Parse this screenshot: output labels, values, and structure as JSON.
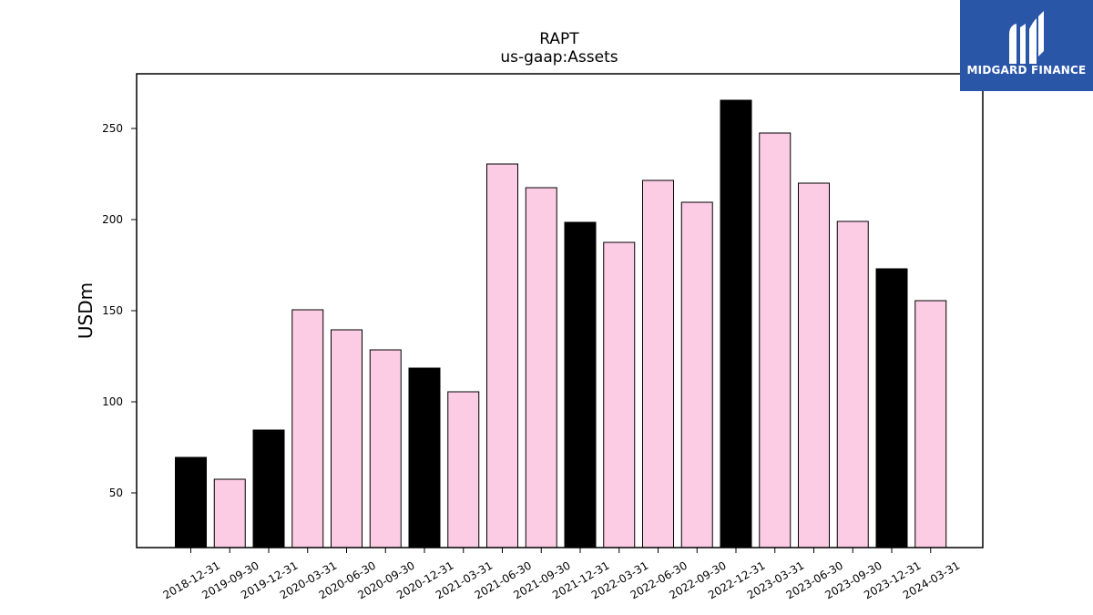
{
  "brand": {
    "name": "MIDGARD FINANCE",
    "color": "#2a56a8"
  },
  "chart_data": {
    "type": "bar",
    "title": "RAPT",
    "subtitle": "us-gaap:Assets",
    "xlabel": "",
    "ylabel": "USDm",
    "ylim": [
      20,
      280
    ],
    "yticks": [
      50,
      100,
      150,
      200,
      250
    ],
    "grid": false,
    "categories": [
      "2018-12-31",
      "2019-09-30",
      "2019-12-31",
      "2020-03-31",
      "2020-06-30",
      "2020-09-30",
      "2020-12-31",
      "2021-03-31",
      "2021-06-30",
      "2021-09-30",
      "2021-12-31",
      "2022-03-31",
      "2022-06-30",
      "2022-09-30",
      "2022-12-31",
      "2023-03-31",
      "2023-06-30",
      "2023-09-30",
      "2023-12-31",
      "2024-03-31"
    ],
    "values": [
      69.5,
      57.5,
      84.5,
      150.5,
      139.5,
      128.5,
      118.5,
      105.5,
      230.5,
      217.5,
      198.5,
      187.5,
      221.5,
      209.5,
      265.5,
      247.5,
      220.0,
      199.0,
      173.0,
      155.5
    ],
    "colors": {
      "annual": "#000000",
      "quarterly": "#fccbe4"
    },
    "bar_kind": [
      "annual",
      "quarterly",
      "annual",
      "quarterly",
      "quarterly",
      "quarterly",
      "annual",
      "quarterly",
      "quarterly",
      "quarterly",
      "annual",
      "quarterly",
      "quarterly",
      "quarterly",
      "annual",
      "quarterly",
      "quarterly",
      "quarterly",
      "annual",
      "quarterly"
    ]
  }
}
